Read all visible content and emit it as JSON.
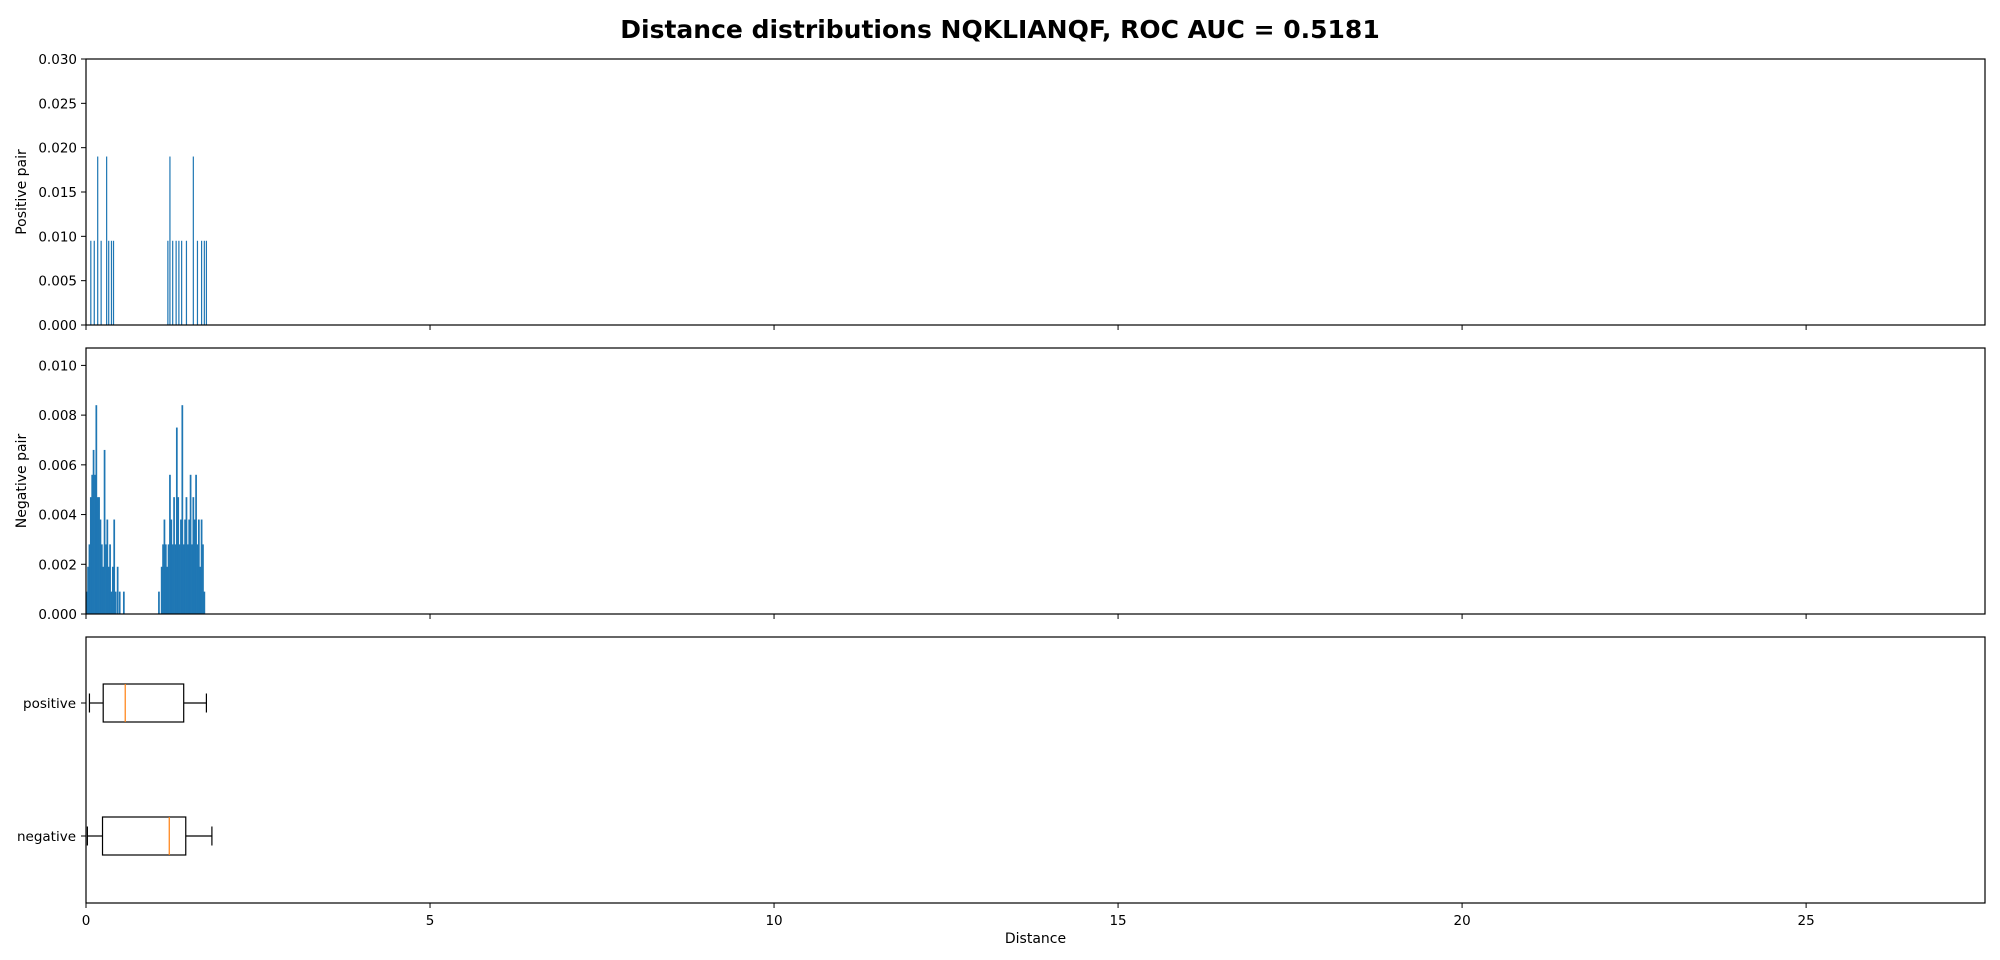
{
  "title": "Distance distributions NQKLIANQF, ROC AUC = 0.5181",
  "chart_data": [
    {
      "type": "bar",
      "ylabel": "Positive pair",
      "xlim": [
        0,
        27.6
      ],
      "ylim": [
        0,
        0.03
      ],
      "yticks": [
        "0.000",
        "0.005",
        "0.010",
        "0.015",
        "0.020",
        "0.025",
        "0.030"
      ],
      "color": "#1f77b4",
      "bins": [
        [
          0.07,
          0.0095
        ],
        [
          0.12,
          0.0095
        ],
        [
          0.17,
          0.019
        ],
        [
          0.22,
          0.0095
        ],
        [
          0.3,
          0.019
        ],
        [
          0.33,
          0.0095
        ],
        [
          0.37,
          0.0095
        ],
        [
          0.4,
          0.0095
        ],
        [
          1.19,
          0.0095
        ],
        [
          1.22,
          0.019
        ],
        [
          1.26,
          0.0095
        ],
        [
          1.31,
          0.0095
        ],
        [
          1.35,
          0.0095
        ],
        [
          1.39,
          0.0095
        ],
        [
          1.46,
          0.0095
        ],
        [
          1.56,
          0.019
        ],
        [
          1.62,
          0.0095
        ],
        [
          1.68,
          0.0095
        ],
        [
          1.72,
          0.0095
        ],
        [
          1.75,
          0.0095
        ]
      ]
    },
    {
      "type": "bar",
      "ylabel": "Negative pair",
      "xlim": [
        0,
        27.6
      ],
      "ylim": [
        0,
        0.0107
      ],
      "yticks": [
        "0.000",
        "0.002",
        "0.004",
        "0.006",
        "0.008",
        "0.010"
      ],
      "color": "#1f77b4",
      "bins": [
        [
          0.01,
          0.0009
        ],
        [
          0.03,
          0.0019
        ],
        [
          0.05,
          0.0028
        ],
        [
          0.07,
          0.0047
        ],
        [
          0.09,
          0.0056
        ],
        [
          0.11,
          0.0066
        ],
        [
          0.13,
          0.0056
        ],
        [
          0.15,
          0.0084
        ],
        [
          0.17,
          0.0047
        ],
        [
          0.19,
          0.0047
        ],
        [
          0.21,
          0.0038
        ],
        [
          0.23,
          0.0028
        ],
        [
          0.25,
          0.0019
        ],
        [
          0.27,
          0.0066
        ],
        [
          0.29,
          0.0028
        ],
        [
          0.31,
          0.0038
        ],
        [
          0.33,
          0.0019
        ],
        [
          0.35,
          0.0028
        ],
        [
          0.37,
          0.0009
        ],
        [
          0.39,
          0.0019
        ],
        [
          0.41,
          0.0038
        ],
        [
          0.43,
          0.0009
        ],
        [
          0.46,
          0.0019
        ],
        [
          0.49,
          0.0009
        ],
        [
          0.55,
          0.0009
        ],
        [
          1.06,
          0.0009
        ],
        [
          1.1,
          0.0019
        ],
        [
          1.12,
          0.0028
        ],
        [
          1.14,
          0.0038
        ],
        [
          1.16,
          0.0028
        ],
        [
          1.18,
          0.0019
        ],
        [
          1.2,
          0.0028
        ],
        [
          1.22,
          0.0056
        ],
        [
          1.24,
          0.0038
        ],
        [
          1.26,
          0.0028
        ],
        [
          1.28,
          0.0047
        ],
        [
          1.3,
          0.0028
        ],
        [
          1.32,
          0.0075
        ],
        [
          1.34,
          0.0047
        ],
        [
          1.36,
          0.0028
        ],
        [
          1.38,
          0.0038
        ],
        [
          1.4,
          0.0084
        ],
        [
          1.42,
          0.0028
        ],
        [
          1.44,
          0.0038
        ],
        [
          1.46,
          0.0047
        ],
        [
          1.48,
          0.0028
        ],
        [
          1.5,
          0.0038
        ],
        [
          1.52,
          0.0056
        ],
        [
          1.54,
          0.0028
        ],
        [
          1.56,
          0.0047
        ],
        [
          1.58,
          0.0038
        ],
        [
          1.6,
          0.0056
        ],
        [
          1.62,
          0.0028
        ],
        [
          1.64,
          0.0038
        ],
        [
          1.66,
          0.0019
        ],
        [
          1.68,
          0.0038
        ],
        [
          1.7,
          0.0028
        ],
        [
          1.72,
          0.0009
        ]
      ]
    },
    {
      "type": "boxplot",
      "orientation": "horizontal",
      "xlabel": "Distance",
      "xlim": [
        0,
        27.6
      ],
      "xticks": [
        0,
        5,
        10,
        15,
        20,
        25
      ],
      "boxes": [
        {
          "label": "positive",
          "whisker_low": 0.05,
          "q1": 0.25,
          "median": 0.57,
          "q3": 1.42,
          "whisker_high": 1.75
        },
        {
          "label": "negative",
          "whisker_low": 0.02,
          "q1": 0.24,
          "median": 1.21,
          "q3": 1.45,
          "whisker_high": 1.83
        }
      ]
    }
  ]
}
